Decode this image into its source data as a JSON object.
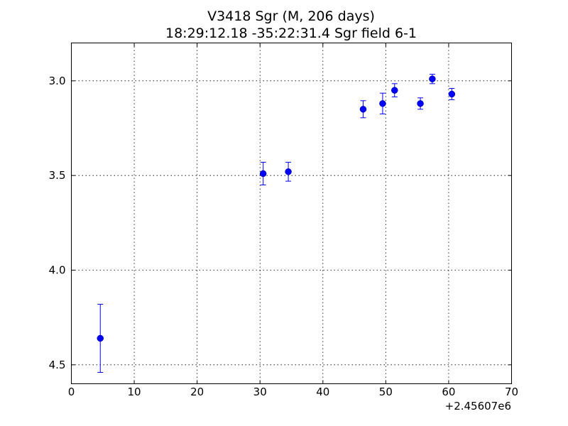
{
  "chart_data": {
    "type": "scatter",
    "title": "V3418 Sgr  (M, 206 days)",
    "subtitle": "18:29:12.18 -35:22:31.4 Sgr field 6-1",
    "xlabel": "",
    "ylabel": "",
    "x_offset_label": "+2.45607e6",
    "xlim": [
      0,
      70
    ],
    "ylim": [
      4.6,
      2.8
    ],
    "y_inverted": true,
    "grid": true,
    "x_ticks": [
      0,
      10,
      20,
      30,
      40,
      50,
      60,
      70
    ],
    "x_tick_labels": [
      "0",
      "10",
      "20",
      "30",
      "40",
      "50",
      "60",
      "70"
    ],
    "y_ticks": [
      3.0,
      3.5,
      4.0,
      4.5
    ],
    "y_tick_labels": [
      "3.0",
      "3.5",
      "4.0",
      "4.5"
    ],
    "marker_color": "#0000ff",
    "errorbar_color": "#0000ff",
    "series": [
      {
        "x": [
          4.6,
          30.5,
          34.5,
          46.4,
          49.5,
          51.4,
          55.5,
          57.4,
          60.5
        ],
        "y": [
          4.36,
          3.49,
          3.48,
          3.15,
          3.12,
          3.05,
          3.12,
          2.99,
          3.07
        ],
        "yerr": [
          0.18,
          0.06,
          0.05,
          0.045,
          0.055,
          0.035,
          0.03,
          0.025,
          0.03
        ]
      }
    ]
  }
}
